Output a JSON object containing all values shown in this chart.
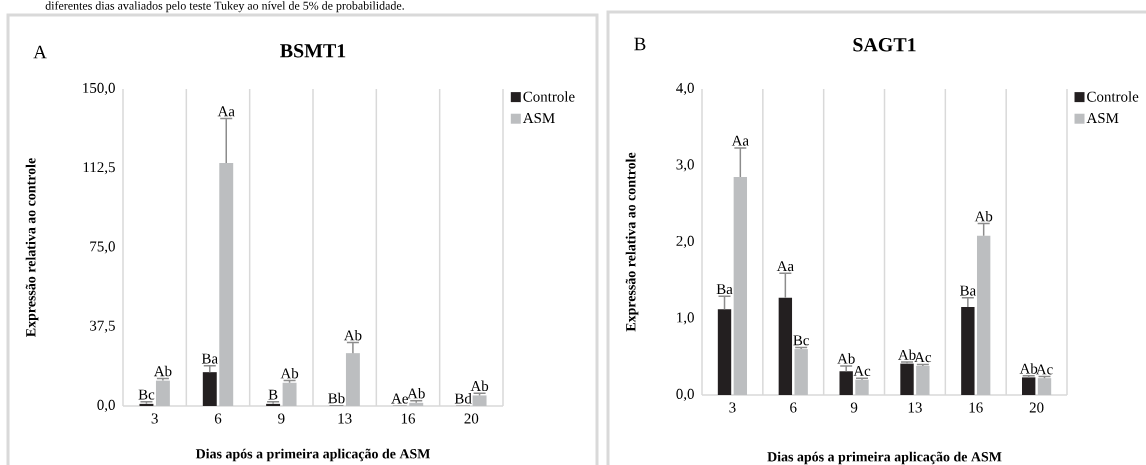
{
  "chart_data": [
    {
      "type": "bar",
      "title": "BSMT1",
      "xlabel": "Dias após a primeira aplicação de ASM",
      "ylabel": "Expressão relativa ao controle",
      "annotations": [
        "A",
        "diferentes dias avaliados pelo teste Tukey ao nível de 5% de probabilidade."
      ],
      "categories": [
        "3",
        "6",
        "9",
        "13",
        "16",
        "20"
      ],
      "ylim": [
        0,
        150
      ],
      "yticks": [
        {
          "value": 0,
          "label": "0,0"
        },
        {
          "value": 37.5,
          "label": "37,5"
        },
        {
          "value": 75,
          "label": "75,0"
        },
        {
          "value": 112.5,
          "label": "112,5"
        },
        {
          "value": 150,
          "label": "150,0"
        }
      ],
      "grid": "x",
      "legend": "right",
      "series": [
        {
          "name": "Controle",
          "color": "#231f20",
          "values": [
            1,
            16,
            1,
            0.2,
            0.1,
            0.1
          ],
          "errors": [
            [
              1,
              2
            ],
            [
              16,
              19
            ],
            [
              1,
              2
            ],
            null,
            null,
            null
          ],
          "value_labels": [
            "Bc",
            "Ba",
            "B",
            "Bb",
            "Ae",
            "Bd"
          ]
        },
        {
          "name": "ASM",
          "color": "#bcbec0",
          "values": [
            12,
            115,
            11,
            25,
            1.5,
            5
          ],
          "errors": [
            [
              12,
              13
            ],
            [
              115,
              136
            ],
            [
              11,
              12
            ],
            [
              25,
              30
            ],
            [
              1.5,
              2.5
            ],
            [
              5,
              6
            ]
          ],
          "value_labels": [
            "Ab",
            "Aa",
            "Ab",
            "Ab",
            "Ab",
            "Ab"
          ]
        }
      ]
    },
    {
      "type": "bar",
      "title": "SAGT1",
      "xlabel": "Dias após a primeira aplicação de ASM",
      "ylabel": "Expressão relativa ao controle",
      "annotations": [
        "B"
      ],
      "categories": [
        "3",
        "6",
        "9",
        "13",
        "16",
        "20"
      ],
      "ylim": [
        0,
        4
      ],
      "yticks": [
        {
          "value": 0,
          "label": "0,0"
        },
        {
          "value": 1,
          "label": "1,0"
        },
        {
          "value": 2,
          "label": "2,0"
        },
        {
          "value": 3,
          "label": "3,0"
        },
        {
          "value": 4,
          "label": "4,0"
        }
      ],
      "grid": "x",
      "legend": "right",
      "series": [
        {
          "name": "Controle",
          "color": "#231f20",
          "values": [
            1.12,
            1.27,
            0.31,
            0.41,
            1.15,
            0.23
          ],
          "errors": [
            [
              1.12,
              1.29
            ],
            [
              1.27,
              1.59
            ],
            [
              0.31,
              0.38
            ],
            [
              0.41,
              0.43
            ],
            [
              1.15,
              1.27
            ],
            [
              0.23,
              0.25
            ]
          ],
          "value_labels": [
            "Ba",
            "Aa",
            "Ab",
            "Ab",
            "Ba",
            "Ab"
          ]
        },
        {
          "name": "ASM",
          "color": "#bcbec0",
          "values": [
            2.85,
            0.6,
            0.2,
            0.38,
            2.08,
            0.22
          ],
          "errors": [
            [
              2.85,
              3.23
            ],
            [
              0.6,
              0.62
            ],
            [
              0.2,
              0.22
            ],
            [
              0.38,
              0.4
            ],
            [
              2.08,
              2.24
            ],
            [
              0.22,
              0.24
            ]
          ],
          "value_labels": [
            "Aa",
            "Bc",
            "Ac",
            "Ac",
            "Ab",
            "Ac"
          ]
        }
      ]
    }
  ]
}
